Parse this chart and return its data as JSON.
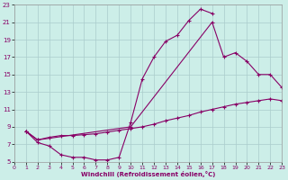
{
  "xlabel": "Windchill (Refroidissement éolien,°C)",
  "background_color": "#cceee8",
  "line_color": "#880066",
  "grid_color": "#aacccc",
  "xlim": [
    0,
    23
  ],
  "ylim": [
    5,
    23
  ],
  "xticks": [
    0,
    1,
    2,
    3,
    4,
    5,
    6,
    7,
    8,
    9,
    10,
    11,
    12,
    13,
    14,
    15,
    16,
    17,
    18,
    19,
    20,
    21,
    22,
    23
  ],
  "yticks": [
    5,
    7,
    9,
    11,
    13,
    15,
    17,
    19,
    21,
    23
  ],
  "line1_x": [
    1,
    2,
    3,
    4,
    5,
    6,
    7,
    8,
    9,
    10,
    11,
    12,
    13,
    14,
    15,
    16,
    17
  ],
  "line1_y": [
    8.5,
    7.2,
    6.8,
    5.8,
    5.5,
    5.5,
    5.2,
    5.2,
    5.5,
    9.5,
    14.5,
    17.0,
    18.8,
    19.5,
    21.2,
    22.5,
    22.0
  ],
  "line2_x": [
    1,
    2,
    3,
    4,
    5,
    6,
    7,
    8,
    9,
    10,
    11,
    12,
    13,
    14,
    15,
    16,
    17,
    18,
    19,
    20,
    21,
    22,
    23
  ],
  "line2_y": [
    8.5,
    7.5,
    7.8,
    8.0,
    8.0,
    8.1,
    8.2,
    8.4,
    8.6,
    8.8,
    9.0,
    9.3,
    9.7,
    10.0,
    10.3,
    10.7,
    11.0,
    11.3,
    11.6,
    11.8,
    12.0,
    12.2,
    12.0
  ],
  "line3_x": [
    1,
    2,
    10,
    17,
    18,
    19,
    20,
    21,
    22,
    23
  ],
  "line3_y": [
    8.5,
    7.5,
    9.0,
    21.0,
    17.0,
    17.5,
    16.5,
    15.0,
    15.0,
    13.5
  ]
}
